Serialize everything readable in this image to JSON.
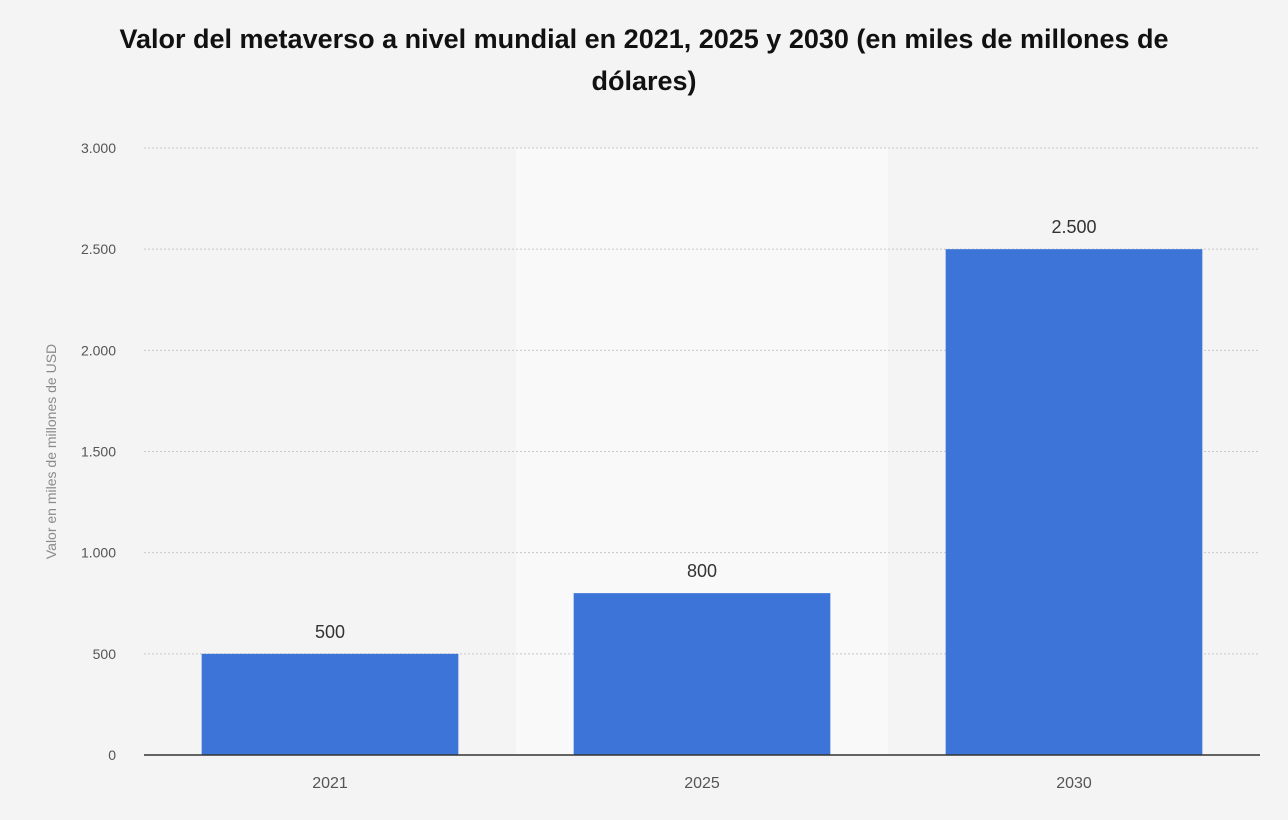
{
  "chart_data": {
    "type": "bar",
    "title": "Valor del metaverso a nivel mundial en 2021, 2025 y 2030 (en miles de millones de dólares)",
    "xlabel": "",
    "ylabel": "Valor en miles de millones de USD",
    "categories": [
      "2021",
      "2025",
      "2030"
    ],
    "values": [
      500,
      800,
      2500
    ],
    "value_labels": [
      "500",
      "800",
      "2.500"
    ],
    "yticks": [
      {
        "value": 0,
        "label": "0"
      },
      {
        "value": 500,
        "label": "500"
      },
      {
        "value": 1000,
        "label": "1.000"
      },
      {
        "value": 1500,
        "label": "1.500"
      },
      {
        "value": 2000,
        "label": "2.000"
      },
      {
        "value": 2500,
        "label": "2.500"
      },
      {
        "value": 3000,
        "label": "3.000"
      }
    ],
    "ylim": [
      0,
      3000
    ],
    "grid": true,
    "legend": "none",
    "colors": {
      "bar": "#3d74d8",
      "page_background": "#f4f4f4",
      "highlight_band": "#f9f9f9",
      "axis_line": "#333333",
      "grid_line": "#c8c8c8",
      "tick_text": "#555555",
      "value_text": "#333333",
      "ylabel_text": "#8a8a8a"
    }
  }
}
